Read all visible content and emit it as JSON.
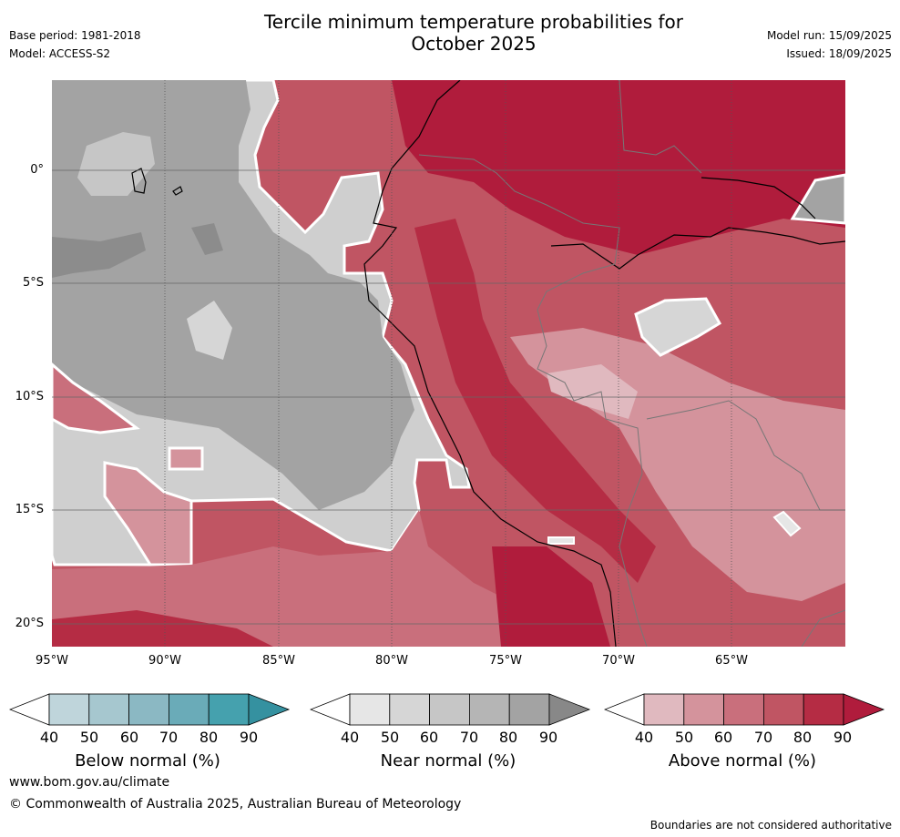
{
  "header": {
    "title_line1": "Tercile minimum temperature probabilities for",
    "title_line2": "October 2025",
    "base_period": "Base period: 1981-2018",
    "model": "Model: ACCESS-S2",
    "model_run": "Model run: 15/09/2025",
    "issued": "Issued: 18/09/2025"
  },
  "axes": {
    "lat_labels": [
      "0°",
      "5°S",
      "10°S",
      "15°S",
      "20°S"
    ],
    "lon_labels": [
      "95°W",
      "90°W",
      "85°W",
      "80°W",
      "75°W",
      "70°W",
      "65°W"
    ]
  },
  "legends": {
    "below": {
      "title": "Below normal (%)",
      "ticks": [
        "40",
        "50",
        "60",
        "70",
        "80",
        "90"
      ],
      "colors": [
        "#ffffff",
        "#bfd5db",
        "#a6c7cf",
        "#8bb8c3",
        "#6aabb8",
        "#45a1ae",
        "#3591a0"
      ]
    },
    "near": {
      "title": "Near normal (%)",
      "ticks": [
        "40",
        "50",
        "60",
        "70",
        "80",
        "90"
      ],
      "colors": [
        "#ffffff",
        "#e6e6e6",
        "#d6d6d6",
        "#c6c6c6",
        "#b5b5b5",
        "#a3a3a3",
        "#888888"
      ]
    },
    "above": {
      "title": "Above normal (%)",
      "ticks": [
        "40",
        "50",
        "60",
        "70",
        "80",
        "90"
      ],
      "colors": [
        "#ffffff",
        "#e0b9bf",
        "#d4939c",
        "#c96f7c",
        "#c05563",
        "#b52c44",
        "#b01c3c"
      ]
    }
  },
  "footer": {
    "url": "www.bom.gov.au/climate",
    "copyright": "© Commonwealth of Australia 2025, Australian Bureau of Meteorology",
    "note": "Boundaries are not considered authoritative"
  }
}
